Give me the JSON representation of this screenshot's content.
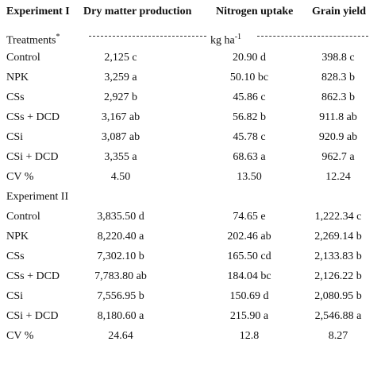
{
  "header": [
    "Experiment I",
    "Dry matter production",
    "Nitrogen uptake",
    "Grain yield"
  ],
  "units": {
    "treatments": "Treatments",
    "treatments_note": "*",
    "unit": "kg ha",
    "unit_exponent": "-1"
  },
  "experiment_1": {
    "rows": [
      [
        "Control",
        "2,125 c",
        "20.90 d",
        "398.8 c"
      ],
      [
        "NPK",
        "3,259 a",
        "50.10 bc",
        "828.3 b"
      ],
      [
        "CSs",
        "2,927 b",
        "45.86 c",
        "862.3 b"
      ],
      [
        "CSs + DCD",
        "3,167 ab",
        "56.82 b",
        "911.8 ab"
      ],
      [
        "CSi",
        "3,087 ab",
        "45.78 c",
        "920.9 ab"
      ],
      [
        "CSi + DCD",
        "3,355 a",
        "68.63 a",
        "962.7 a"
      ],
      [
        "CV %",
        "4.50",
        "13.50",
        "12.24"
      ]
    ]
  },
  "experiment_2": {
    "title": "Experiment II",
    "rows": [
      [
        "Control",
        "3,835.50 d",
        "74.65 e",
        "1,222.34 c"
      ],
      [
        "NPK",
        "8,220.40 a",
        "202.46 ab",
        "2,269.14 b"
      ],
      [
        "CSs",
        "7,302.10 b",
        "165.50 cd",
        "2,133.83 b"
      ],
      [
        "CSs + DCD",
        "7,783.80 ab",
        "184.04 bc",
        "2,126.22 b"
      ],
      [
        "CSi",
        "7,556.95 b",
        "150.69 d",
        "2,080.95 b"
      ],
      [
        "CSi + DCD",
        "8,180.60 a",
        "215.90 a",
        "2,546.88 a"
      ],
      [
        "CV %",
        "24.64",
        "12.8",
        "8.27"
      ]
    ]
  }
}
